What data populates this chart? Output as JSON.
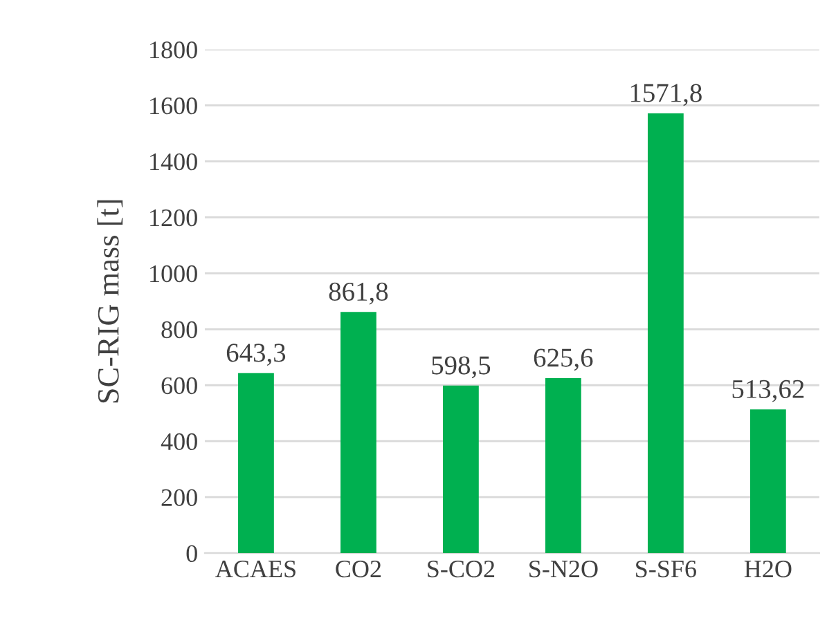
{
  "chart_data": {
    "type": "bar",
    "ylabel": "SC-RIG mass [t]",
    "categories": [
      "ACAES",
      "CO2",
      "S-CO2",
      "S-N2O",
      "S-SF6",
      "H2O"
    ],
    "values": [
      643.3,
      861.8,
      598.5,
      625.6,
      1571.8,
      513.62
    ],
    "value_labels": [
      "643,3",
      "861,8",
      "598,5",
      "625,6",
      "1571,8",
      "513,62"
    ],
    "color": "#00b050",
    "ylim": [
      0,
      1800
    ],
    "yticks": [
      0,
      200,
      400,
      600,
      800,
      1000,
      1200,
      1400,
      1600,
      1800
    ],
    "grid": "y",
    "legend": false
  }
}
